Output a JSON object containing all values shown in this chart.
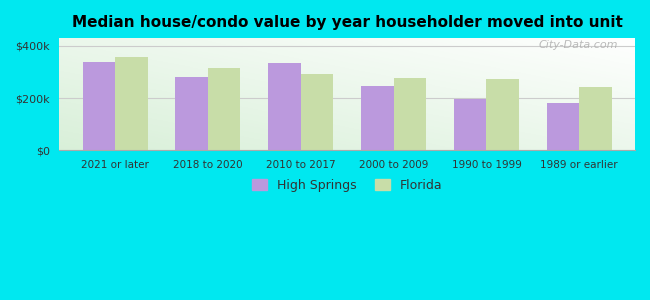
{
  "title": "Median house/condo value by year householder moved into unit",
  "categories": [
    "2021 or later",
    "2018 to 2020",
    "2010 to 2017",
    "2000 to 2009",
    "1990 to 1999",
    "1989 or earlier"
  ],
  "high_springs": [
    340000,
    282000,
    335000,
    248000,
    197000,
    180000
  ],
  "florida": [
    358000,
    315000,
    292000,
    277000,
    275000,
    242000
  ],
  "high_springs_color": "#bb99dd",
  "florida_color": "#c8dda8",
  "background_outer": "#00e8f0",
  "yticks": [
    0,
    200000,
    400000
  ],
  "ytick_labels": [
    "$0",
    "$200k",
    "$400k"
  ],
  "ylim": [
    0,
    430000
  ],
  "legend_high_springs": "High Springs",
  "legend_florida": "Florida",
  "watermark": "City-Data.com"
}
